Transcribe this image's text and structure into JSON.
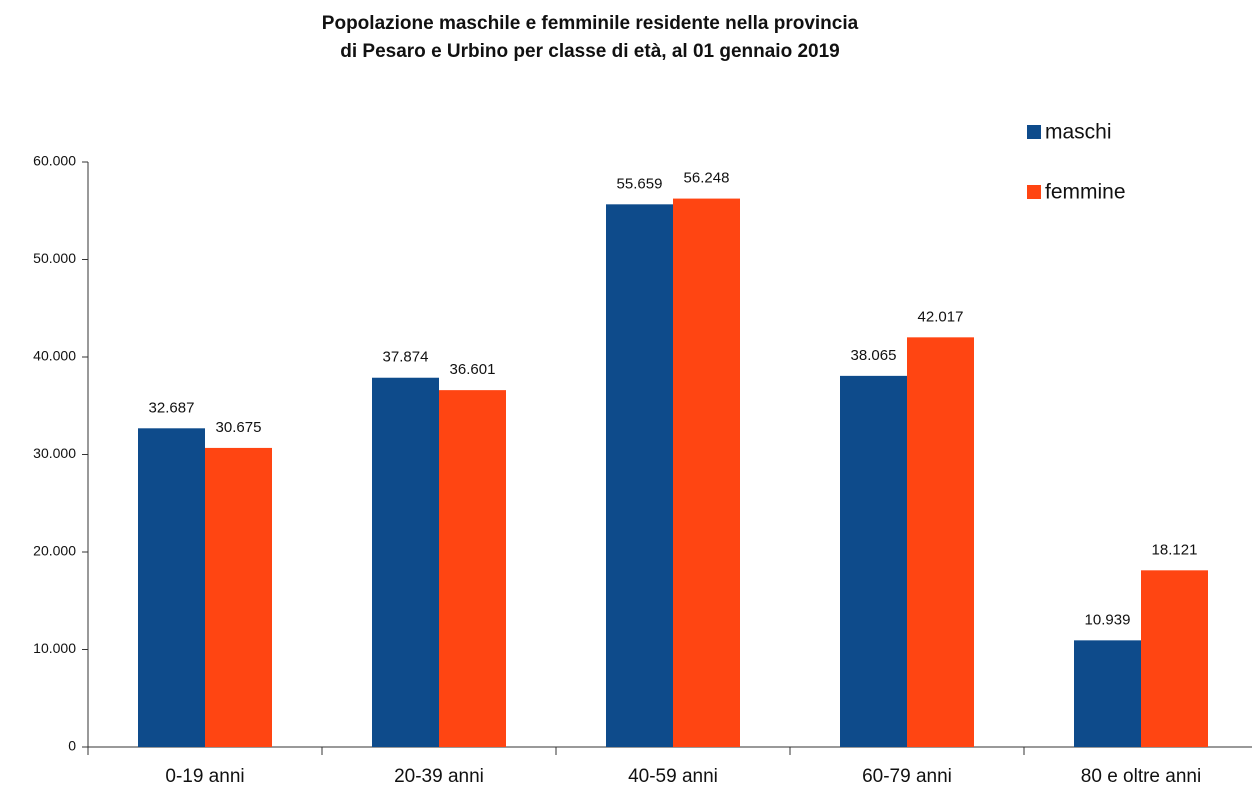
{
  "chart_data": {
    "type": "bar",
    "title": [
      "Popolazione maschile e femminile residente nella provincia",
      "di Pesaro e Urbino per classe di età, al 01 gennaio 2019"
    ],
    "categories": [
      "0-19 anni",
      "20-39 anni",
      "40-59 anni",
      "60-79 anni",
      "80 e oltre anni"
    ],
    "series": [
      {
        "name": "maschi",
        "color": "#0e4b8b",
        "values": [
          32687,
          37874,
          55659,
          38065,
          10939
        ],
        "value_labels": [
          "32.687",
          "37.874",
          "55.659",
          "38.065",
          "10.939"
        ]
      },
      {
        "name": "femmine",
        "color": "#ff4512",
        "values": [
          30675,
          36601,
          56248,
          42017,
          18121
        ],
        "value_labels": [
          "30.675",
          "36.601",
          "56.248",
          "42.017",
          "18.121"
        ]
      }
    ],
    "ylim": [
      0,
      60000
    ],
    "yticks": [
      {
        "value": 0,
        "label": "0"
      },
      {
        "value": 10000,
        "label": "10.000"
      },
      {
        "value": 20000,
        "label": "20.000"
      },
      {
        "value": 30000,
        "label": "30.000"
      },
      {
        "value": 40000,
        "label": "40.000"
      },
      {
        "value": 50000,
        "label": "50.000"
      },
      {
        "value": 60000,
        "label": "60.000"
      }
    ],
    "grid": false,
    "legend": "top-right"
  }
}
